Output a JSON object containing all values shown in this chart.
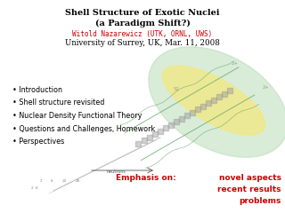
{
  "title_line1": "Shell Structure of Exotic Nuclei",
  "title_line2": "(a Paradigm Shift?)",
  "author": "Witold Nazarewicz (UTK, ORNL, UWS)",
  "institution": "University of Surrey, UK, Mar. 11, 2008",
  "bullets": [
    "Introduction",
    "Shell structure revisited",
    "Nuclear Density Functional Theory",
    "Questions and Challenges, Homework",
    "Perspectives"
  ],
  "emphasis_label": "Emphasis on:",
  "emphasis_items": [
    "novel aspects",
    "recent results",
    "problems"
  ],
  "title_color": "#000000",
  "author_color": "#cc0000",
  "institution_color": "#000000",
  "emphasis_color": "#cc0000",
  "bg_color": "#ffffff",
  "title_fontsize": 7.0,
  "author_fontsize": 5.5,
  "institution_fontsize": 6.2,
  "bullet_fontsize": 5.8,
  "emphasis_fontsize": 6.5
}
